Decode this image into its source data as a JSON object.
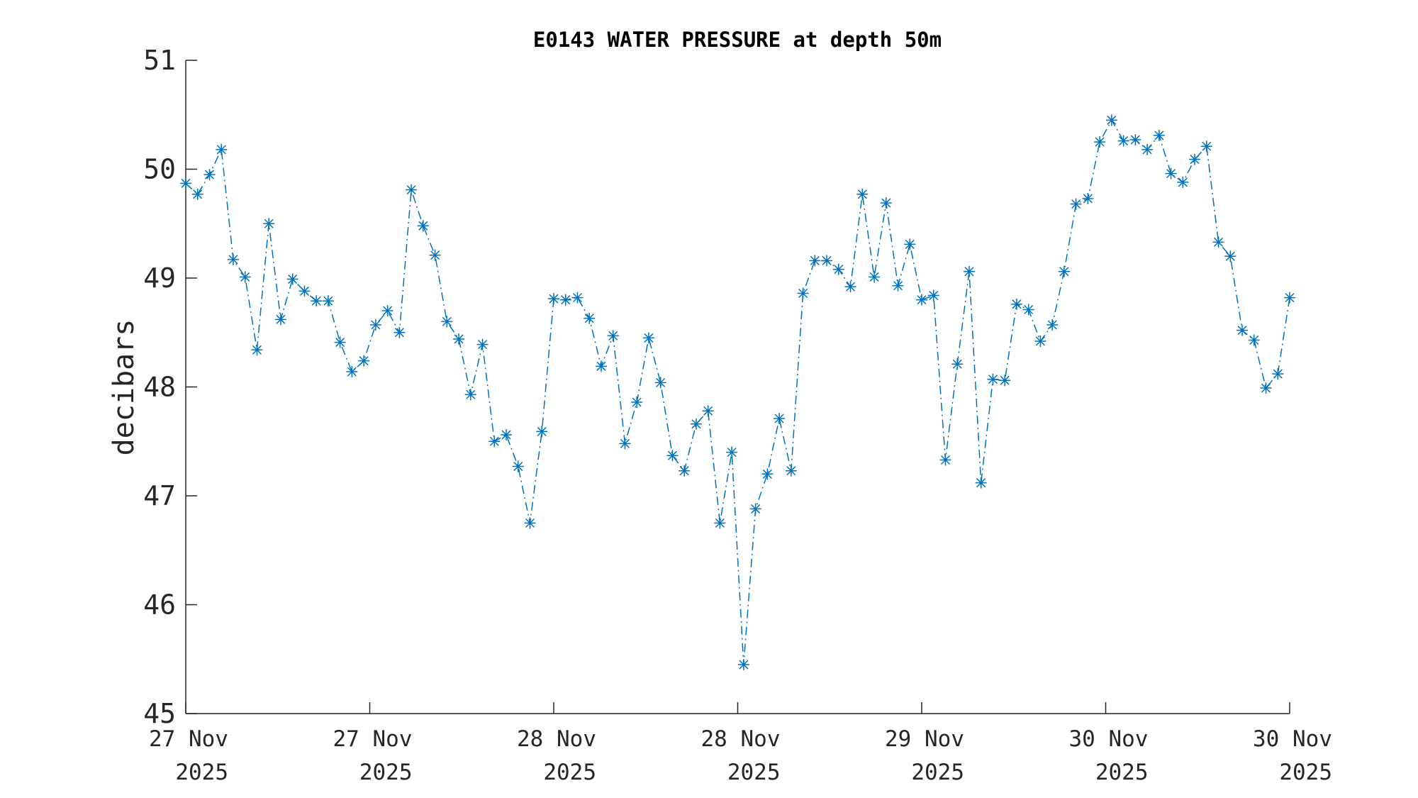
{
  "chart_data": {
    "type": "line",
    "title": "E0143 WATER PRESSURE at depth 50m",
    "xlabel": "",
    "ylabel": "decibars",
    "ylim": [
      45,
      51
    ],
    "yticks": [
      "45",
      "46",
      "47",
      "48",
      "49",
      "50",
      "51"
    ],
    "xlim": [
      0,
      93
    ],
    "xticks": [
      {
        "pos": 0,
        "line1": "27 Nov",
        "line2": "2025"
      },
      {
        "pos": 15.5,
        "line1": "27 Nov",
        "line2": "2025"
      },
      {
        "pos": 31,
        "line1": "28 Nov",
        "line2": "2025"
      },
      {
        "pos": 46.5,
        "line1": "28 Nov",
        "line2": "2025"
      },
      {
        "pos": 62,
        "line1": "29 Nov",
        "line2": "2025"
      },
      {
        "pos": 77.5,
        "line1": "30 Nov",
        "line2": "2025"
      },
      {
        "pos": 93,
        "line1": "30 Nov",
        "line2": "2025"
      }
    ],
    "grid": false,
    "series": [
      {
        "name": "pressure",
        "color": "#0072BD",
        "line_style": "dash-dot",
        "marker": "asterisk",
        "values": [
          49.87,
          49.77,
          49.95,
          50.18,
          49.17,
          49.01,
          48.34,
          49.5,
          48.62,
          48.99,
          48.88,
          48.79,
          48.79,
          48.41,
          48.14,
          48.24,
          48.57,
          48.7,
          48.5,
          49.81,
          49.48,
          49.21,
          48.6,
          48.44,
          47.93,
          48.39,
          47.5,
          47.56,
          47.27,
          46.75,
          47.59,
          48.81,
          48.8,
          48.82,
          48.63,
          48.19,
          48.47,
          47.48,
          47.86,
          48.45,
          48.04,
          47.37,
          47.23,
          47.66,
          47.78,
          46.75,
          47.4,
          45.45,
          46.88,
          47.2,
          47.71,
          47.23,
          48.86,
          49.16,
          49.16,
          49.08,
          48.92,
          49.77,
          49.01,
          49.69,
          48.93,
          49.31,
          48.8,
          48.84,
          47.33,
          48.21,
          49.06,
          47.12,
          48.07,
          48.06,
          48.76,
          48.71,
          48.42,
          48.57,
          49.06,
          49.68,
          49.73,
          50.25,
          50.45,
          50.26,
          50.27,
          50.18,
          50.31,
          49.96,
          49.88,
          50.09,
          50.21,
          49.33,
          49.2,
          48.52,
          48.43,
          47.99,
          48.12,
          48.82
        ]
      }
    ]
  }
}
